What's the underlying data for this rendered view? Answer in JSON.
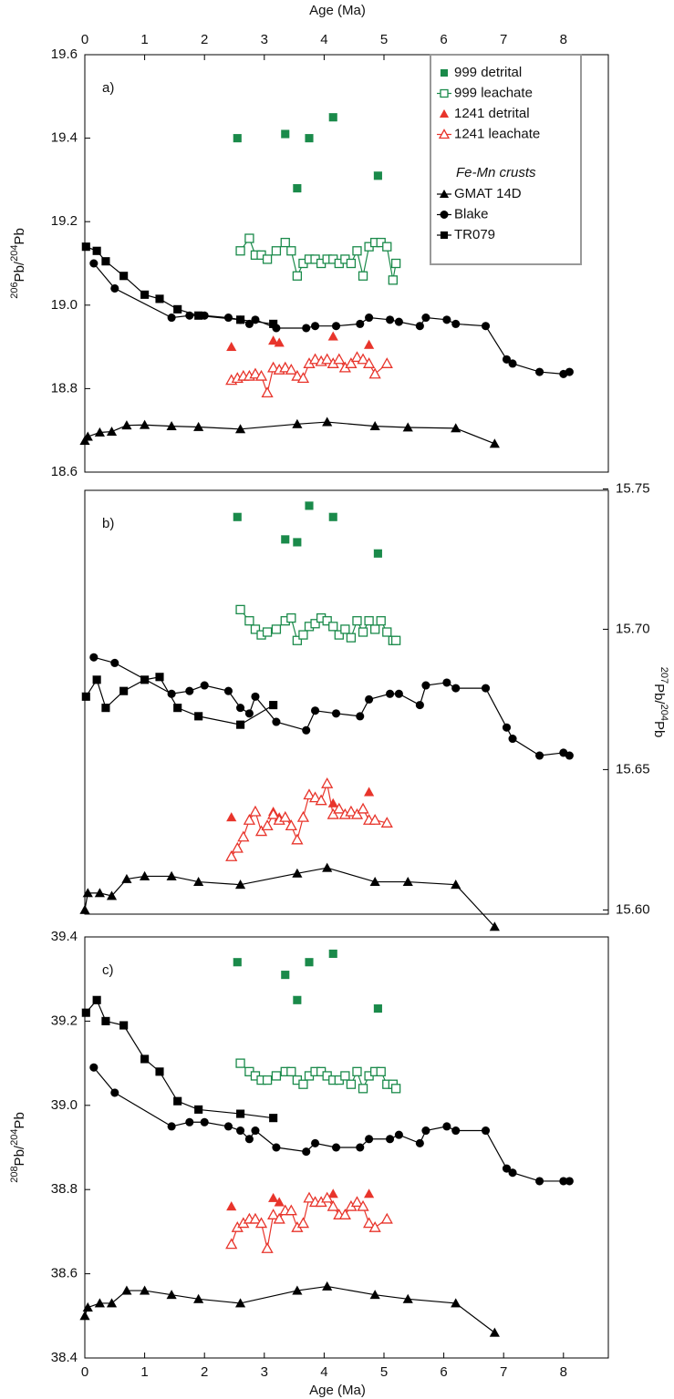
{
  "chart_data": [
    {
      "type": "scatter",
      "panel_label": "a)",
      "x_label": "Age (Ma)",
      "x_axis_side": "top",
      "y_label": "206Pb/204Pb",
      "y_axis_side": "left",
      "xlim": [
        0,
        8.75
      ],
      "xticks": [
        0,
        1,
        2,
        3,
        4,
        5,
        6,
        7,
        8
      ],
      "ylim": [
        18.6,
        19.6
      ],
      "yticks": [
        18.6,
        18.8,
        {
          "value": 19.0,
          "label": "19.0"
        },
        19.2,
        19.4,
        19.6
      ],
      "legend_heading": "Fe-Mn crusts",
      "series": [
        {
          "name": "999 detrital",
          "color": "#1a8a4a",
          "marker": "square",
          "filled": true,
          "line": false,
          "x": [
            2.55,
            3.35,
            3.75,
            4.15,
            3.55,
            4.9
          ],
          "values": [
            19.4,
            19.41,
            19.4,
            19.45,
            19.28,
            19.31
          ]
        },
        {
          "name": "999 leachate",
          "color": "#1a8a4a",
          "marker": "square",
          "filled": false,
          "line": true,
          "x": [
            2.6,
            2.75,
            2.85,
            2.95,
            3.05,
            3.2,
            3.35,
            3.45,
            3.55,
            3.65,
            3.75,
            3.85,
            3.95,
            4.05,
            4.15,
            4.25,
            4.35,
            4.45,
            4.55,
            4.65,
            4.75,
            4.85,
            4.95,
            5.05,
            5.15,
            5.2
          ],
          "values": [
            19.13,
            19.16,
            19.12,
            19.12,
            19.11,
            19.13,
            19.15,
            19.13,
            19.07,
            19.1,
            19.11,
            19.11,
            19.1,
            19.11,
            19.11,
            19.1,
            19.11,
            19.1,
            19.13,
            19.07,
            19.14,
            19.15,
            19.15,
            19.14,
            19.06,
            19.1
          ]
        },
        {
          "name": "1241 detrital",
          "color": "#e8342b",
          "marker": "triangle",
          "filled": true,
          "line": false,
          "x": [
            2.45,
            3.15,
            3.25,
            4.15,
            4.75
          ],
          "values": [
            18.9,
            18.915,
            18.91,
            18.925,
            18.905
          ]
        },
        {
          "name": "1241 leachate",
          "color": "#e8342b",
          "marker": "triangle",
          "filled": false,
          "line": true,
          "x": [
            2.45,
            2.55,
            2.65,
            2.75,
            2.85,
            2.95,
            3.05,
            3.15,
            3.25,
            3.35,
            3.45,
            3.55,
            3.65,
            3.75,
            3.85,
            3.95,
            4.05,
            4.15,
            4.25,
            4.35,
            4.45,
            4.55,
            4.65,
            4.75,
            4.85,
            5.05
          ],
          "values": [
            18.82,
            18.825,
            18.83,
            18.83,
            18.835,
            18.83,
            18.79,
            18.85,
            18.845,
            18.85,
            18.845,
            18.83,
            18.825,
            18.86,
            18.87,
            18.865,
            18.87,
            18.86,
            18.87,
            18.85,
            18.86,
            18.875,
            18.87,
            18.86,
            18.835,
            18.86
          ]
        },
        {
          "name": "GMAT 14D",
          "color": "#000000",
          "marker": "triangle",
          "filled": true,
          "line": true,
          "x": [
            0,
            0.05,
            0.25,
            0.45,
            0.7,
            1.0,
            1.45,
            1.9,
            2.6,
            3.55,
            4.05,
            4.85,
            5.4,
            6.2,
            6.85
          ],
          "values": [
            18.675,
            18.685,
            18.695,
            18.697,
            18.712,
            18.713,
            18.71,
            18.708,
            18.703,
            18.715,
            18.72,
            18.71,
            18.707,
            18.705,
            18.668
          ]
        },
        {
          "name": "Blake",
          "color": "#000000",
          "marker": "circle",
          "filled": true,
          "line": true,
          "x": [
            0.15,
            0.5,
            1.45,
            1.75,
            2.0,
            2.4,
            2.6,
            2.75,
            2.85,
            3.2,
            3.7,
            3.85,
            4.2,
            4.6,
            4.75,
            5.1,
            5.25,
            5.6,
            5.7,
            6.05,
            6.2,
            6.7,
            7.05,
            7.15,
            7.6,
            8.0,
            8.1
          ],
          "values": [
            19.1,
            19.04,
            18.97,
            18.975,
            18.975,
            18.97,
            18.965,
            18.955,
            18.965,
            18.945,
            18.945,
            18.95,
            18.95,
            18.955,
            18.97,
            18.965,
            18.96,
            18.95,
            18.97,
            18.965,
            18.955,
            18.95,
            18.87,
            18.86,
            18.84,
            18.835,
            18.84
          ]
        },
        {
          "name": "TR079",
          "color": "#000000",
          "marker": "square",
          "filled": true,
          "line": true,
          "x": [
            0.02,
            0.2,
            0.35,
            0.65,
            1.0,
            1.25,
            1.55,
            1.9,
            2.6,
            3.15
          ],
          "values": [
            19.14,
            19.13,
            19.105,
            19.07,
            19.025,
            19.015,
            18.99,
            18.975,
            18.965,
            18.955
          ]
        }
      ]
    },
    {
      "type": "scatter",
      "panel_label": "b)",
      "y_label": "207Pb/204Pb",
      "y_axis_side": "right",
      "xlim": [
        0,
        8.75
      ],
      "ylim": [
        15.5985,
        15.7495
      ],
      "yticks": [
        {
          "value": 15.6,
          "label": "15.60"
        },
        15.65,
        {
          "value": 15.7,
          "label": "15.70"
        },
        15.75
      ],
      "series": [
        {
          "color": "#1a8a4a",
          "marker": "square",
          "filled": true,
          "line": false,
          "x": [
            2.55,
            3.35,
            3.75,
            4.15,
            3.55,
            4.9
          ],
          "values": [
            15.74,
            15.732,
            15.744,
            15.74,
            15.731,
            15.727
          ]
        },
        {
          "color": "#1a8a4a",
          "marker": "square",
          "filled": false,
          "line": true,
          "x": [
            2.6,
            2.75,
            2.85,
            2.95,
            3.05,
            3.2,
            3.35,
            3.45,
            3.55,
            3.65,
            3.75,
            3.85,
            3.95,
            4.05,
            4.15,
            4.25,
            4.35,
            4.45,
            4.55,
            4.65,
            4.75,
            4.85,
            4.95,
            5.05,
            5.15,
            5.2
          ],
          "values": [
            15.707,
            15.703,
            15.7,
            15.698,
            15.699,
            15.7,
            15.703,
            15.704,
            15.696,
            15.698,
            15.701,
            15.702,
            15.704,
            15.703,
            15.701,
            15.698,
            15.7,
            15.697,
            15.703,
            15.699,
            15.703,
            15.7,
            15.703,
            15.699,
            15.696,
            15.696
          ]
        },
        {
          "color": "#e8342b",
          "marker": "triangle",
          "filled": true,
          "line": false,
          "x": [
            2.45,
            3.15,
            3.25,
            4.15,
            4.75
          ],
          "values": [
            15.633,
            15.635,
            15.633,
            15.638,
            15.642
          ]
        },
        {
          "color": "#e8342b",
          "marker": "triangle",
          "filled": false,
          "line": true,
          "x": [
            2.45,
            2.55,
            2.65,
            2.75,
            2.85,
            2.95,
            3.05,
            3.15,
            3.25,
            3.35,
            3.45,
            3.55,
            3.65,
            3.75,
            3.85,
            3.95,
            4.05,
            4.15,
            4.25,
            4.35,
            4.45,
            4.55,
            4.65,
            4.75,
            4.85,
            5.05
          ],
          "values": [
            15.619,
            15.622,
            15.626,
            15.632,
            15.635,
            15.628,
            15.63,
            15.634,
            15.632,
            15.633,
            15.63,
            15.625,
            15.633,
            15.641,
            15.64,
            15.639,
            15.645,
            15.634,
            15.636,
            15.634,
            15.635,
            15.634,
            15.636,
            15.632,
            15.632,
            15.631
          ]
        },
        {
          "color": "#000000",
          "marker": "triangle",
          "filled": true,
          "line": true,
          "x": [
            0,
            0.05,
            0.25,
            0.45,
            0.7,
            1.0,
            1.45,
            1.9,
            2.6,
            3.55,
            4.05,
            4.85,
            5.4,
            6.2,
            6.85
          ],
          "values": [
            15.6,
            15.606,
            15.606,
            15.605,
            15.611,
            15.612,
            15.612,
            15.61,
            15.609,
            15.613,
            15.615,
            15.61,
            15.61,
            15.609,
            15.594
          ]
        },
        {
          "color": "#000000",
          "marker": "circle",
          "filled": true,
          "line": true,
          "x": [
            0.15,
            0.5,
            1.45,
            1.75,
            2.0,
            2.4,
            2.6,
            2.75,
            2.85,
            3.2,
            3.7,
            3.85,
            4.2,
            4.6,
            4.75,
            5.1,
            5.25,
            5.6,
            5.7,
            6.05,
            6.2,
            6.7,
            7.05,
            7.15,
            7.6,
            8.0,
            8.1
          ],
          "values": [
            15.69,
            15.688,
            15.677,
            15.678,
            15.68,
            15.678,
            15.672,
            15.67,
            15.676,
            15.667,
            15.664,
            15.671,
            15.67,
            15.669,
            15.675,
            15.677,
            15.677,
            15.673,
            15.68,
            15.681,
            15.679,
            15.679,
            15.665,
            15.661,
            15.655,
            15.656,
            15.655
          ]
        },
        {
          "color": "#000000",
          "marker": "square",
          "filled": true,
          "line": true,
          "x": [
            0.02,
            0.2,
            0.35,
            0.65,
            1.0,
            1.25,
            1.55,
            1.9,
            2.6,
            3.15
          ],
          "values": [
            15.676,
            15.682,
            15.672,
            15.678,
            15.682,
            15.683,
            15.672,
            15.669,
            15.666,
            15.673
          ]
        }
      ]
    },
    {
      "type": "scatter",
      "panel_label": "c)",
      "x_label": "Age (Ma)",
      "x_axis_side": "bottom",
      "y_label": "208Pb/204Pb",
      "y_axis_side": "left",
      "xlim": [
        0,
        8.75
      ],
      "xticks": [
        0,
        1,
        2,
        3,
        4,
        5,
        6,
        7,
        8
      ],
      "ylim": [
        38.4,
        39.4
      ],
      "yticks": [
        38.4,
        38.6,
        38.8,
        {
          "value": 39.0,
          "label": "39.0"
        },
        39.2,
        39.4
      ],
      "series": [
        {
          "color": "#1a8a4a",
          "marker": "square",
          "filled": true,
          "line": false,
          "x": [
            2.55,
            3.35,
            3.75,
            4.15,
            3.55,
            4.9
          ],
          "values": [
            39.34,
            39.31,
            39.34,
            39.36,
            39.25,
            39.23
          ]
        },
        {
          "color": "#1a8a4a",
          "marker": "square",
          "filled": false,
          "line": true,
          "x": [
            2.6,
            2.75,
            2.85,
            2.95,
            3.05,
            3.2,
            3.35,
            3.45,
            3.55,
            3.65,
            3.75,
            3.85,
            3.95,
            4.05,
            4.15,
            4.25,
            4.35,
            4.45,
            4.55,
            4.65,
            4.75,
            4.85,
            4.95,
            5.05,
            5.15,
            5.2
          ],
          "values": [
            39.1,
            39.08,
            39.07,
            39.06,
            39.06,
            39.07,
            39.08,
            39.08,
            39.06,
            39.05,
            39.07,
            39.08,
            39.08,
            39.07,
            39.06,
            39.06,
            39.07,
            39.05,
            39.08,
            39.04,
            39.07,
            39.08,
            39.08,
            39.05,
            39.05,
            39.04
          ]
        },
        {
          "color": "#e8342b",
          "marker": "triangle",
          "filled": true,
          "line": false,
          "x": [
            2.45,
            3.15,
            3.25,
            4.15,
            4.75
          ],
          "values": [
            38.76,
            38.78,
            38.77,
            38.79,
            38.79
          ]
        },
        {
          "color": "#e8342b",
          "marker": "triangle",
          "filled": false,
          "line": true,
          "x": [
            2.45,
            2.55,
            2.65,
            2.75,
            2.85,
            2.95,
            3.05,
            3.15,
            3.25,
            3.35,
            3.45,
            3.55,
            3.65,
            3.75,
            3.85,
            3.95,
            4.05,
            4.15,
            4.25,
            4.35,
            4.45,
            4.55,
            4.65,
            4.75,
            4.85,
            5.05
          ],
          "values": [
            38.67,
            38.71,
            38.72,
            38.73,
            38.73,
            38.72,
            38.66,
            38.74,
            38.73,
            38.75,
            38.75,
            38.71,
            38.72,
            38.78,
            38.77,
            38.77,
            38.78,
            38.76,
            38.74,
            38.74,
            38.76,
            38.77,
            38.76,
            38.72,
            38.71,
            38.73
          ]
        },
        {
          "color": "#000000",
          "marker": "triangle",
          "filled": true,
          "line": true,
          "x": [
            0,
            0.05,
            0.25,
            0.45,
            0.7,
            1.0,
            1.45,
            1.9,
            2.6,
            3.55,
            4.05,
            4.85,
            5.4,
            6.2,
            6.85
          ],
          "values": [
            38.5,
            38.52,
            38.53,
            38.53,
            38.56,
            38.56,
            38.55,
            38.54,
            38.53,
            38.56,
            38.57,
            38.55,
            38.54,
            38.53,
            38.46
          ]
        },
        {
          "color": "#000000",
          "marker": "circle",
          "filled": true,
          "line": true,
          "x": [
            0.15,
            0.5,
            1.45,
            1.75,
            2.0,
            2.4,
            2.6,
            2.75,
            2.85,
            3.2,
            3.7,
            3.85,
            4.2,
            4.6,
            4.75,
            5.1,
            5.25,
            5.6,
            5.7,
            6.05,
            6.2,
            6.7,
            7.05,
            7.15,
            7.6,
            8.0,
            8.1
          ],
          "values": [
            39.09,
            39.03,
            38.95,
            38.96,
            38.96,
            38.95,
            38.94,
            38.92,
            38.94,
            38.9,
            38.89,
            38.91,
            38.9,
            38.9,
            38.92,
            38.92,
            38.93,
            38.91,
            38.94,
            38.95,
            38.94,
            38.94,
            38.85,
            38.84,
            38.82,
            38.82,
            38.82
          ]
        },
        {
          "color": "#000000",
          "marker": "square",
          "filled": true,
          "line": true,
          "x": [
            0.02,
            0.2,
            0.35,
            0.65,
            1.0,
            1.25,
            1.55,
            1.9,
            2.6,
            3.15
          ],
          "values": [
            39.22,
            39.25,
            39.2,
            39.19,
            39.11,
            39.08,
            39.01,
            38.99,
            38.98,
            38.97
          ]
        }
      ]
    }
  ]
}
